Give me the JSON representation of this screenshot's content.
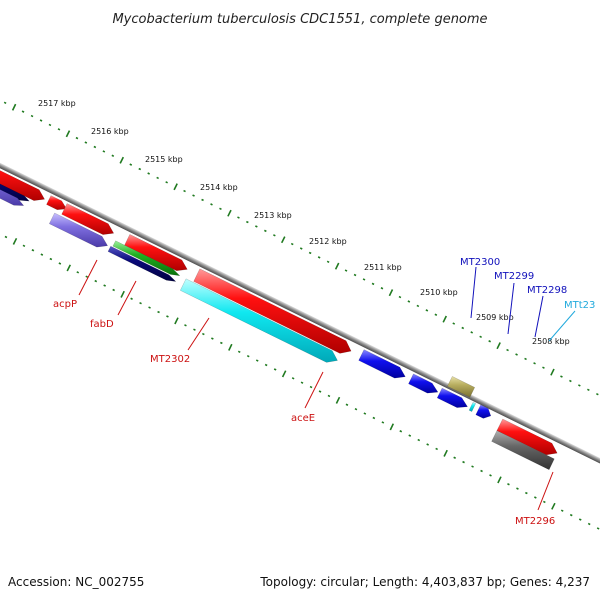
{
  "title": "Mycobacterium tuberculosis CDC1551, complete genome",
  "footer": {
    "accession": "Accession: NC_002755",
    "stats": "Topology: circular; Length: 4,403,837 bp; Genes: 4,237"
  },
  "scale_ticks": [
    "2517 kbp",
    "2516 kbp",
    "2515 kbp",
    "2514 kbp",
    "2513 kbp",
    "2512 kbp",
    "2511 kbp",
    "2510 kbp",
    "2509 kbp",
    "2508 kbp"
  ],
  "gene_labels": {
    "acpP": "acpP",
    "fabD": "fabD",
    "mt2302": "MT2302",
    "aceE": "aceE",
    "mt2300": "MT2300",
    "mt2299": "MT2299",
    "mt2298": "MT2298",
    "mtt23": "MTt23",
    "mt2296": "MT2296"
  },
  "colors": {
    "red": "#ff1010",
    "navy": "#0a0a7a",
    "lavender": "#7f6fe0",
    "green": "#20b020",
    "cyan": "#10f0f0",
    "blue": "#1010ee",
    "olive": "#b8ae60",
    "gray": "#666666",
    "tick_green": "#207a20",
    "label_red": "#cc1111",
    "label_blue": "#1111bb",
    "label_cyan": "#22aadd"
  }
}
